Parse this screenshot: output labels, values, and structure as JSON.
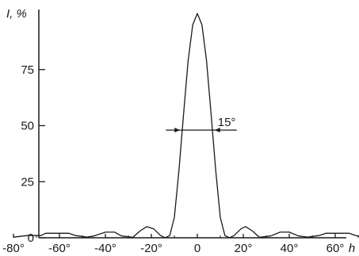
{
  "chart_data": {
    "type": "line",
    "title": "",
    "ylabel": "I, %",
    "xlabel": "h",
    "xlim": [
      -85,
      90
    ],
    "ylim": [
      0,
      100
    ],
    "yticks": [
      {
        "v": 0,
        "label": "0"
      },
      {
        "v": 25,
        "label": "25"
      },
      {
        "v": 50,
        "label": "50"
      },
      {
        "v": 75,
        "label": "75"
      }
    ],
    "xticks": [
      {
        "v": -80,
        "label": "-80°"
      },
      {
        "v": -60,
        "label": "-60°"
      },
      {
        "v": -40,
        "label": "-40°"
      },
      {
        "v": -20,
        "label": "-20°"
      },
      {
        "v": 0,
        "label": "0"
      },
      {
        "v": 20,
        "label": "20°"
      },
      {
        "v": 40,
        "label": "40°"
      },
      {
        "v": 60,
        "label": "60°"
      }
    ],
    "annotation": {
      "label": "15°",
      "y": 48,
      "x_from": -7.5,
      "x_to": 7.5
    },
    "series": [
      {
        "points": [
          [
            -80,
            0.3
          ],
          [
            -74,
            1
          ],
          [
            -68,
            1
          ],
          [
            -66,
            2
          ],
          [
            -56,
            2
          ],
          [
            -53,
            1
          ],
          [
            -48,
            0.3
          ],
          [
            -45,
            0.8
          ],
          [
            -40,
            2.5
          ],
          [
            -36,
            2.5
          ],
          [
            -33,
            0.8
          ],
          [
            -28,
            0.2
          ],
          [
            -25,
            3
          ],
          [
            -22,
            5
          ],
          [
            -19,
            4
          ],
          [
            -16,
            1
          ],
          [
            -14,
            0
          ],
          [
            -12,
            1
          ],
          [
            -10,
            9
          ],
          [
            -8,
            30
          ],
          [
            -6,
            55
          ],
          [
            -4,
            79
          ],
          [
            -2,
            95
          ],
          [
            0,
            100
          ],
          [
            2,
            95
          ],
          [
            4,
            79
          ],
          [
            6,
            55
          ],
          [
            8,
            30
          ],
          [
            10,
            9
          ],
          [
            12,
            1
          ],
          [
            14,
            0
          ],
          [
            16,
            1
          ],
          [
            19,
            4
          ],
          [
            21,
            5
          ],
          [
            24,
            3
          ],
          [
            27,
            0.2
          ],
          [
            32,
            0.8
          ],
          [
            36,
            2.5
          ],
          [
            40,
            2.5
          ],
          [
            44,
            0.8
          ],
          [
            48,
            0.3
          ],
          [
            53,
            1
          ],
          [
            56,
            2
          ],
          [
            66,
            2
          ],
          [
            69,
            1
          ],
          [
            72,
            0.3
          ],
          [
            78,
            0.3
          ]
        ]
      }
    ]
  }
}
